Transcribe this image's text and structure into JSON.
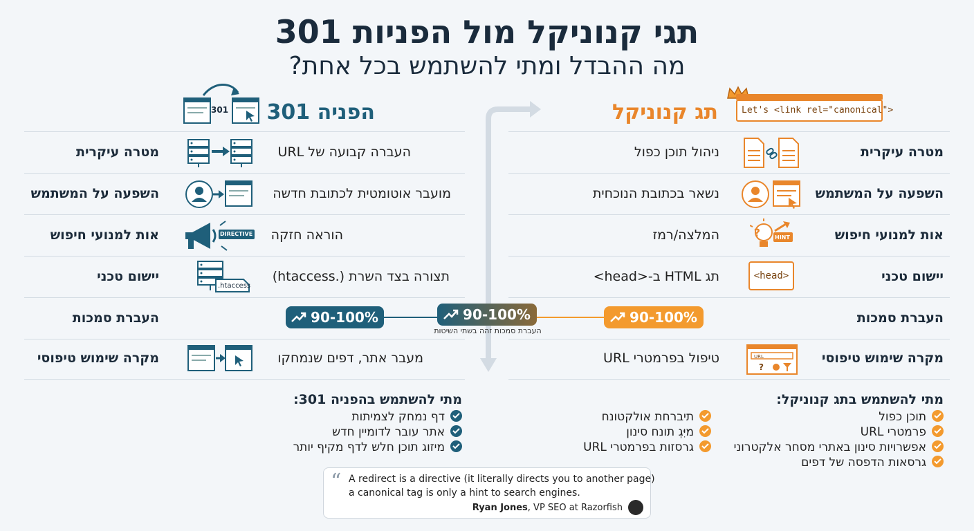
{
  "title": "תגי קנוניקל מול הפניות 301",
  "subtitle": "מה ההבדל ומתי להשתמש בכל אחת?",
  "canonical": {
    "heading": "תג קנוניקל",
    "code_sample": "Let's <link rel=\"canonical\">"
  },
  "redirect": {
    "heading": "הפניה 301",
    "icon_text": "301"
  },
  "rows": [
    {
      "label": "מטרה עיקרית",
      "canonical": "ניהול תוכן כפול",
      "redirect": "העברה קבועה של URL"
    },
    {
      "label": "השפעה על המשתמש",
      "canonical": "נשאר בכתובת הנוכחית",
      "redirect": "מועבר אוטומטית לכתובת חדשה"
    },
    {
      "label": "אות למנועי חיפוש",
      "canonical": "המלצה/רמז",
      "redirect": "הוראה חזקה"
    },
    {
      "label": "יישום טכני",
      "canonical": "תג HTML ב-<head>",
      "redirect": "תצורה בצד השרת (.htaccess)"
    },
    {
      "label": "העברת סמכות",
      "canonical": "",
      "redirect": ""
    },
    {
      "label": "מקרה שימוש טיפוסי",
      "canonical": "טיפול בפרמטרי URL",
      "redirect": "מעבר אתר, דפים שנמחקו"
    }
  ],
  "icon_labels": {
    "directive": "DIRECTIVE",
    "htaccess": ".htaccess",
    "hint": "HINT",
    "head": "<head>",
    "url": "URL"
  },
  "authority": {
    "canonical_value": "90-100%",
    "redirect_value": "90-100%",
    "shared_value": "90-100%",
    "shared_note": "העברת סמכות זהה בשתי השיטות"
  },
  "when_canonical": {
    "title": "מתי להשתמש בתג קנוניקל:",
    "col1": [
      "תוכן כפול",
      "פרמטרי URL",
      "אפשרויות סינון באתרי מסחר אלקטרוני",
      "גרסאות הדפסה של דפים"
    ],
    "col2": [
      "תיברחת אולקטונח",
      "מיִּגְ תונח סינון",
      "גרסזות בפרמטרי URL"
    ]
  },
  "when_redirect": {
    "title": "מתי להשתמש בהפניה 301:",
    "items": [
      "דף נמחק לצמיתות",
      "אתר עובר לדומיין חדש",
      "מיזוג תוכן חלש לדף מקיף יותר"
    ]
  },
  "quote": {
    "line1": "A redirect is a directive (it literally directs you to another page)",
    "line2": "a canonical tag is only a hint to search engines.",
    "author_name": "Ryan Jones",
    "author_role": ", VP SEO at Razorfish"
  },
  "colors": {
    "canonical_accent": "#e9862b",
    "redirect_accent": "#1f5f7a"
  }
}
